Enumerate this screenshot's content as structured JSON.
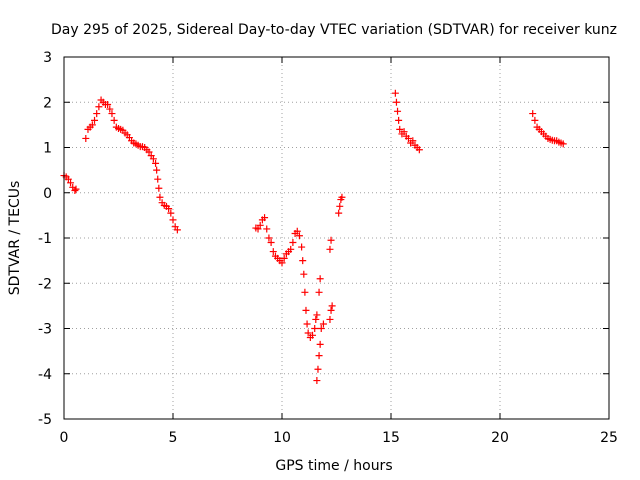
{
  "chart_data": {
    "type": "scatter",
    "title": "Day 295 of 2025, Sidereal Day-to-day VTEC variation (SDTVAR) for receiver kunz",
    "xlabel": "GPS time / hours",
    "ylabel": "SDTVAR / TECUs",
    "xlim": [
      0,
      25
    ],
    "ylim": [
      -5,
      3
    ],
    "x_ticks": [
      0,
      5,
      10,
      15,
      20,
      25
    ],
    "y_ticks": [
      -5,
      -4,
      -3,
      -2,
      -1,
      0,
      1,
      2,
      3
    ],
    "grid": true,
    "marker": "+",
    "color": "#ff0000",
    "series": [
      {
        "points": [
          [
            0.0,
            0.38
          ],
          [
            0.1,
            0.35
          ],
          [
            0.2,
            0.3
          ],
          [
            0.3,
            0.22
          ],
          [
            0.4,
            0.12
          ],
          [
            0.5,
            0.05
          ],
          [
            0.55,
            0.08
          ],
          [
            1.0,
            1.2
          ],
          [
            1.1,
            1.4
          ],
          [
            1.2,
            1.45
          ],
          [
            1.3,
            1.5
          ],
          [
            1.4,
            1.6
          ],
          [
            1.5,
            1.75
          ],
          [
            1.6,
            1.9
          ],
          [
            1.7,
            2.05
          ],
          [
            1.8,
            2.0
          ],
          [
            1.9,
            1.95
          ],
          [
            2.0,
            1.95
          ],
          [
            2.1,
            1.85
          ],
          [
            2.2,
            1.75
          ],
          [
            2.3,
            1.6
          ],
          [
            2.4,
            1.45
          ],
          [
            2.5,
            1.42
          ],
          [
            2.6,
            1.4
          ],
          [
            2.7,
            1.38
          ],
          [
            2.8,
            1.32
          ],
          [
            2.9,
            1.28
          ],
          [
            3.0,
            1.22
          ],
          [
            3.1,
            1.15
          ],
          [
            3.2,
            1.1
          ],
          [
            3.3,
            1.08
          ],
          [
            3.4,
            1.05
          ],
          [
            3.5,
            1.02
          ],
          [
            3.6,
            1.02
          ],
          [
            3.7,
            1.0
          ],
          [
            3.8,
            0.95
          ],
          [
            3.9,
            0.9
          ],
          [
            4.0,
            0.82
          ],
          [
            4.1,
            0.75
          ],
          [
            4.2,
            0.65
          ],
          [
            4.25,
            0.5
          ],
          [
            4.3,
            0.3
          ],
          [
            4.35,
            0.1
          ],
          [
            4.4,
            -0.1
          ],
          [
            4.5,
            -0.22
          ],
          [
            4.6,
            -0.28
          ],
          [
            4.7,
            -0.3
          ],
          [
            4.8,
            -0.35
          ],
          [
            4.9,
            -0.45
          ],
          [
            5.0,
            -0.6
          ],
          [
            5.1,
            -0.75
          ],
          [
            5.2,
            -0.82
          ],
          [
            8.8,
            -0.78
          ],
          [
            8.9,
            -0.8
          ],
          [
            9.0,
            -0.72
          ],
          [
            9.1,
            -0.6
          ],
          [
            9.2,
            -0.55
          ],
          [
            9.3,
            -0.8
          ],
          [
            9.4,
            -1.0
          ],
          [
            9.5,
            -1.1
          ],
          [
            9.6,
            -1.3
          ],
          [
            9.7,
            -1.4
          ],
          [
            9.8,
            -1.45
          ],
          [
            9.9,
            -1.5
          ],
          [
            10.0,
            -1.55
          ],
          [
            10.1,
            -1.45
          ],
          [
            10.2,
            -1.35
          ],
          [
            10.3,
            -1.3
          ],
          [
            10.4,
            -1.25
          ],
          [
            10.5,
            -1.1
          ],
          [
            10.6,
            -0.9
          ],
          [
            10.7,
            -0.85
          ],
          [
            10.8,
            -0.95
          ],
          [
            10.9,
            -1.2
          ],
          [
            10.95,
            -1.5
          ],
          [
            11.0,
            -1.8
          ],
          [
            11.05,
            -2.2
          ],
          [
            11.1,
            -2.6
          ],
          [
            11.15,
            -2.9
          ],
          [
            11.2,
            -3.1
          ],
          [
            11.3,
            -3.2
          ],
          [
            11.4,
            -3.15
          ],
          [
            11.5,
            -3.0
          ],
          [
            11.55,
            -2.8
          ],
          [
            11.6,
            -2.7
          ],
          [
            11.7,
            -2.2
          ],
          [
            11.75,
            -1.9
          ],
          [
            11.6,
            -4.15
          ],
          [
            11.65,
            -3.9
          ],
          [
            11.7,
            -3.6
          ],
          [
            11.75,
            -3.35
          ],
          [
            11.8,
            -3.0
          ],
          [
            11.9,
            -2.9
          ],
          [
            12.2,
            -2.8
          ],
          [
            12.25,
            -2.6
          ],
          [
            12.3,
            -2.5
          ],
          [
            12.2,
            -1.25
          ],
          [
            12.25,
            -1.05
          ],
          [
            12.6,
            -0.45
          ],
          [
            12.65,
            -0.3
          ],
          [
            12.7,
            -0.15
          ],
          [
            12.75,
            -0.1
          ],
          [
            15.2,
            2.2
          ],
          [
            15.25,
            2.0
          ],
          [
            15.3,
            1.8
          ],
          [
            15.35,
            1.6
          ],
          [
            15.4,
            1.4
          ],
          [
            15.5,
            1.3
          ],
          [
            15.6,
            1.35
          ],
          [
            15.7,
            1.25
          ],
          [
            15.8,
            1.2
          ],
          [
            15.9,
            1.1
          ],
          [
            16.0,
            1.15
          ],
          [
            16.1,
            1.05
          ],
          [
            16.2,
            1.0
          ],
          [
            16.3,
            0.95
          ],
          [
            21.5,
            1.75
          ],
          [
            21.6,
            1.6
          ],
          [
            21.7,
            1.45
          ],
          [
            21.8,
            1.4
          ],
          [
            21.9,
            1.35
          ],
          [
            22.0,
            1.3
          ],
          [
            22.1,
            1.25
          ],
          [
            22.2,
            1.2
          ],
          [
            22.3,
            1.18
          ],
          [
            22.4,
            1.16
          ],
          [
            22.5,
            1.15
          ],
          [
            22.6,
            1.15
          ],
          [
            22.7,
            1.12
          ],
          [
            22.8,
            1.1
          ],
          [
            22.9,
            1.08
          ]
        ]
      }
    ]
  }
}
